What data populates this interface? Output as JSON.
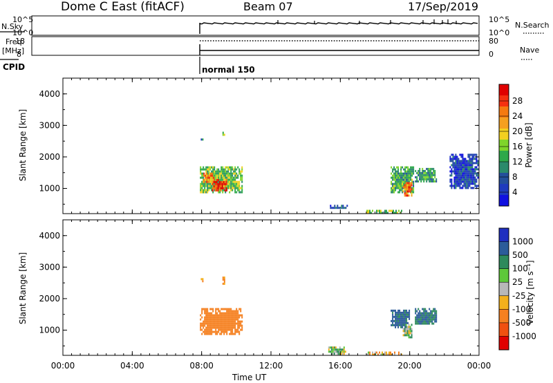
{
  "header": {
    "station": "Dome C East (fitACF)",
    "beam": "Beam 07",
    "date": "17/Sep/2019"
  },
  "param_panels": {
    "nsky_label": "N.Sky",
    "nsky_ticks": [
      "10^5",
      "10^0"
    ],
    "nsearch_label": "N.Search",
    "nsearch_ticks": [
      "10^5",
      "10^0"
    ],
    "freq_label_1": "Freq.",
    "freq_label_2": "[MHz]",
    "freq_ticks": [
      "18",
      "8"
    ],
    "nave_label": "Nave",
    "nave_ticks": [
      "80",
      "0"
    ],
    "cpid_label": "CPID",
    "cpid_mode": "normal 150"
  },
  "time_axis": {
    "label": "Time UT",
    "ticks": [
      "00:00",
      "04:00",
      "08:00",
      "12:00",
      "16:00",
      "20:00",
      "00:00"
    ]
  },
  "colorbar_power": {
    "label": "Power [dB]",
    "ticks": [
      "28",
      "24",
      "20",
      "16",
      "12",
      "8",
      "4"
    ],
    "colors": [
      "#e00000",
      "#f53010",
      "#f57a10",
      "#f5a020",
      "#f2d020",
      "#7fd52a",
      "#2ea84a",
      "#2b8a6b",
      "#244f9b",
      "#1f3bbd",
      "#1010e0"
    ]
  },
  "colorbar_velocity": {
    "label": "Velocity [m s⁻¹]",
    "ticks": [
      "1000",
      "500",
      "100",
      "25",
      "-25",
      "-100",
      "-500",
      "-1000"
    ],
    "colors": [
      "#1f2fc0",
      "#2c5c9a",
      "#2e8a5c",
      "#5ec83a",
      "#b8b8b8",
      "#f3b01c",
      "#f58020",
      "#f05010",
      "#e00000"
    ]
  },
  "chart_data": [
    {
      "type": "heatmap",
      "title": "",
      "xlabel": "",
      "ylabel": "Slant Range [km]",
      "y_ticks": [
        "1000",
        "2000",
        "3000",
        "4000"
      ],
      "ylim": [
        200,
        4500
      ],
      "xlim_hours": [
        0,
        24
      ],
      "colorbar_label": "Power [dB]",
      "regions": [
        {
          "t0": 7.9,
          "t1": 10.3,
          "r0": 900,
          "r1": 1700,
          "value": 14
        },
        {
          "t0": 8.6,
          "t1": 9.4,
          "r0": 950,
          "r1": 1300,
          "value": 28
        },
        {
          "t0": 8.1,
          "t1": 8.7,
          "r0": 1200,
          "r1": 1500,
          "value": 22
        },
        {
          "t0": 7.95,
          "t1": 8.05,
          "r0": 2550,
          "r1": 2650,
          "value": 8
        },
        {
          "t0": 9.2,
          "t1": 9.3,
          "r0": 2700,
          "r1": 2800,
          "value": 16
        },
        {
          "t0": 18.9,
          "t1": 20.2,
          "r0": 900,
          "r1": 1700,
          "value": 12
        },
        {
          "t0": 19.6,
          "t1": 20.1,
          "r0": 800,
          "r1": 1200,
          "value": 24
        },
        {
          "t0": 20.3,
          "t1": 21.5,
          "r0": 1200,
          "r1": 1650,
          "value": 10
        },
        {
          "t0": 22.3,
          "t1": 23.9,
          "r0": 1000,
          "r1": 2100,
          "value": 4
        },
        {
          "t0": 15.4,
          "t1": 16.4,
          "r0": 380,
          "r1": 480,
          "value": 6
        },
        {
          "t0": 17.5,
          "t1": 19.5,
          "r0": 250,
          "r1": 320,
          "value": 14
        }
      ]
    },
    {
      "type": "heatmap",
      "title": "",
      "xlabel": "Time UT",
      "ylabel": "Slant Range [km]",
      "y_ticks": [
        "1000",
        "2000",
        "3000",
        "4000"
      ],
      "ylim": [
        200,
        4500
      ],
      "xlim_hours": [
        0,
        24
      ],
      "colorbar_label": "Velocity [m s⁻¹]",
      "regions": [
        {
          "t0": 7.9,
          "t1": 10.3,
          "r0": 900,
          "r1": 1700,
          "value": -300
        },
        {
          "t0": 7.95,
          "t1": 8.05,
          "r0": 2550,
          "r1": 2650,
          "value": -100
        },
        {
          "t0": 9.2,
          "t1": 9.3,
          "r0": 2450,
          "r1": 2700,
          "value": -100
        },
        {
          "t0": 18.9,
          "t1": 20.0,
          "r0": 1100,
          "r1": 1650,
          "value": 600
        },
        {
          "t0": 19.6,
          "t1": 20.1,
          "r0": 800,
          "r1": 1200,
          "value": 60
        },
        {
          "t0": 20.3,
          "t1": 21.5,
          "r0": 1200,
          "r1": 1700,
          "value": 500
        },
        {
          "t0": 15.3,
          "t1": 16.3,
          "r0": 250,
          "r1": 480,
          "value": 60
        },
        {
          "t0": 17.5,
          "t1": 19.5,
          "r0": 250,
          "r1": 320,
          "value": -100
        }
      ]
    }
  ]
}
